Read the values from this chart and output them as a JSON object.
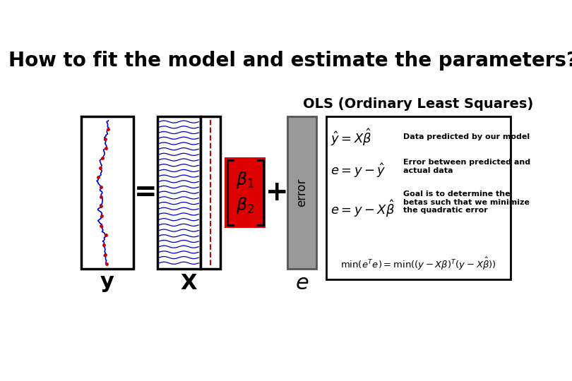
{
  "title": "How to fit the model and estimate the parameters?",
  "title_fontsize": 20,
  "subtitle": "OLS (Ordinary Least Squares)",
  "subtitle_fontsize": 14,
  "bg_color": "#ffffff",
  "eq1": "$\\hat{y} = X\\hat{\\beta}$",
  "eq1_desc": "Data predicted by our model",
  "eq2": "$e = y - \\hat{y}$",
  "eq2_desc": "Error between predicted and\nactual data",
  "eq3": "$e = y - X\\hat{\\beta}$",
  "eq3_desc": "Goal is to determine the\nbetas such that we minimize\nthe quadratic error",
  "eq4": "$\\min(e^T e) = \\min((y - X\\beta)^T (y - X\\hat{\\beta}))$",
  "label_y": "$\\mathbf{y}$",
  "label_X": "$\\mathbf{X}$",
  "label_e": "$e$",
  "equals_sign": "=",
  "plus_sign": "+",
  "line_color_signal": "#0000cc",
  "line_color_red_signal": "#cc0000",
  "line_color_red_dashed": "#cc0000",
  "hatch_color": "#0000cc",
  "box_color_e": "#999999"
}
